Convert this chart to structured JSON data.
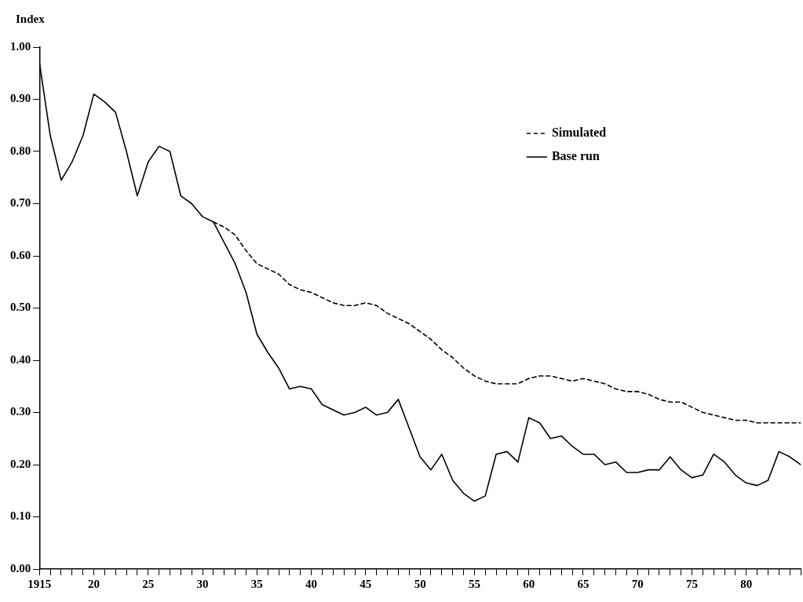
{
  "chart_data": {
    "type": "line",
    "ylabel": "Index",
    "legend": "top right",
    "grid": false,
    "marker": "none",
    "x": [
      1915,
      1916,
      1917,
      1918,
      1919,
      1920,
      1921,
      1922,
      1923,
      1924,
      1925,
      1926,
      1927,
      1928,
      1929,
      1930,
      1931,
      1932,
      1933,
      1934,
      1935,
      1936,
      1937,
      1938,
      1939,
      1940,
      1941,
      1942,
      1943,
      1944,
      1945,
      1946,
      1947,
      1948,
      1949,
      1950,
      1951,
      1952,
      1953,
      1954,
      1955,
      1956,
      1957,
      1958,
      1959,
      1960,
      1961,
      1962,
      1963,
      1964,
      1965,
      1966,
      1967,
      1968,
      1969,
      1970,
      1971,
      1972,
      1973,
      1974,
      1975,
      1976,
      1977,
      1978,
      1979,
      1980,
      1981,
      1982,
      1983,
      1984,
      1985
    ],
    "xlim": [
      1915,
      1985
    ],
    "xticks": [
      {
        "value": 1915,
        "label": "1915"
      },
      {
        "value": 1916,
        "label": null
      },
      {
        "value": 1917,
        "label": null
      },
      {
        "value": 1918,
        "label": null
      },
      {
        "value": 1919,
        "label": null
      },
      {
        "value": 1920,
        "label": "20"
      },
      {
        "value": 1921,
        "label": null
      },
      {
        "value": 1922,
        "label": null
      },
      {
        "value": 1923,
        "label": null
      },
      {
        "value": 1924,
        "label": null
      },
      {
        "value": 1925,
        "label": "25"
      },
      {
        "value": 1926,
        "label": null
      },
      {
        "value": 1927,
        "label": null
      },
      {
        "value": 1928,
        "label": null
      },
      {
        "value": 1929,
        "label": null
      },
      {
        "value": 1930,
        "label": "30"
      },
      {
        "value": 1931,
        "label": null
      },
      {
        "value": 1932,
        "label": null
      },
      {
        "value": 1933,
        "label": null
      },
      {
        "value": 1934,
        "label": null
      },
      {
        "value": 1935,
        "label": "35"
      },
      {
        "value": 1936,
        "label": null
      },
      {
        "value": 1937,
        "label": null
      },
      {
        "value": 1938,
        "label": null
      },
      {
        "value": 1939,
        "label": null
      },
      {
        "value": 1940,
        "label": "40"
      },
      {
        "value": 1941,
        "label": null
      },
      {
        "value": 1942,
        "label": null
      },
      {
        "value": 1943,
        "label": null
      },
      {
        "value": 1944,
        "label": null
      },
      {
        "value": 1945,
        "label": "45"
      },
      {
        "value": 1946,
        "label": null
      },
      {
        "value": 1947,
        "label": null
      },
      {
        "value": 1948,
        "label": null
      },
      {
        "value": 1949,
        "label": null
      },
      {
        "value": 1950,
        "label": "50"
      },
      {
        "value": 1951,
        "label": null
      },
      {
        "value": 1952,
        "label": null
      },
      {
        "value": 1953,
        "label": null
      },
      {
        "value": 1954,
        "label": null
      },
      {
        "value": 1955,
        "label": "55"
      },
      {
        "value": 1956,
        "label": null
      },
      {
        "value": 1957,
        "label": null
      },
      {
        "value": 1958,
        "label": null
      },
      {
        "value": 1959,
        "label": null
      },
      {
        "value": 1960,
        "label": "60"
      },
      {
        "value": 1961,
        "label": null
      },
      {
        "value": 1962,
        "label": null
      },
      {
        "value": 1963,
        "label": null
      },
      {
        "value": 1964,
        "label": null
      },
      {
        "value": 1965,
        "label": "65"
      },
      {
        "value": 1966,
        "label": null
      },
      {
        "value": 1967,
        "label": null
      },
      {
        "value": 1968,
        "label": null
      },
      {
        "value": 1969,
        "label": null
      },
      {
        "value": 1970,
        "label": "70"
      },
      {
        "value": 1971,
        "label": null
      },
      {
        "value": 1972,
        "label": null
      },
      {
        "value": 1973,
        "label": null
      },
      {
        "value": 1974,
        "label": null
      },
      {
        "value": 1975,
        "label": "75"
      },
      {
        "value": 1976,
        "label": null
      },
      {
        "value": 1977,
        "label": null
      },
      {
        "value": 1978,
        "label": null
      },
      {
        "value": 1979,
        "label": null
      },
      {
        "value": 1980,
        "label": "80"
      },
      {
        "value": 1981,
        "label": null
      },
      {
        "value": 1982,
        "label": null
      },
      {
        "value": 1983,
        "label": null
      },
      {
        "value": 1984,
        "label": null
      },
      {
        "value": 1985,
        "label": null
      }
    ],
    "ylim": [
      0,
      1
    ],
    "yticks": [
      {
        "value": 0,
        "label": "0.00"
      },
      {
        "value": 0.1,
        "label": "0.10"
      },
      {
        "value": 0.2,
        "label": "0.20"
      },
      {
        "value": 0.3,
        "label": "0.30"
      },
      {
        "value": 0.4,
        "label": "0.40"
      },
      {
        "value": 0.5,
        "label": "0.50"
      },
      {
        "value": 0.6,
        "label": "0.60"
      },
      {
        "value": 0.7,
        "label": "0.70"
      },
      {
        "value": 0.8,
        "label": "0.80"
      },
      {
        "value": 0.9,
        "label": "0.90"
      },
      {
        "value": 1,
        "label": "1.00"
      }
    ],
    "series": [
      {
        "name": "Simulated",
        "color": "#000000",
        "line_style": "dashed",
        "values": [
          null,
          null,
          null,
          null,
          null,
          null,
          null,
          null,
          null,
          null,
          null,
          null,
          null,
          null,
          null,
          null,
          0.665,
          0.655,
          0.64,
          0.61,
          0.585,
          0.575,
          0.565,
          0.545,
          0.535,
          0.53,
          0.52,
          0.51,
          0.505,
          0.505,
          0.51,
          0.505,
          0.49,
          0.48,
          0.47,
          0.455,
          0.44,
          0.42,
          0.405,
          0.385,
          0.37,
          0.36,
          0.355,
          0.355,
          0.355,
          0.365,
          0.37,
          0.37,
          0.365,
          0.36,
          0.365,
          0.36,
          0.355,
          0.345,
          0.34,
          0.34,
          0.335,
          0.325,
          0.32,
          0.32,
          0.31,
          0.3,
          0.295,
          0.29,
          0.285,
          0.285,
          0.28,
          0.28,
          0.28,
          0.28,
          0.28
        ]
      },
      {
        "name": "Base run",
        "color": "#000000",
        "line_style": "solid",
        "values": [
          0.97,
          0.83,
          0.745,
          0.78,
          0.83,
          0.91,
          0.895,
          0.875,
          0.8,
          0.715,
          0.78,
          0.81,
          0.8,
          0.715,
          0.7,
          0.675,
          0.665,
          0.625,
          0.585,
          0.53,
          0.45,
          0.415,
          0.385,
          0.345,
          0.35,
          0.345,
          0.315,
          0.305,
          0.295,
          0.3,
          0.31,
          0.295,
          0.3,
          0.325,
          0.27,
          0.215,
          0.19,
          0.22,
          0.17,
          0.145,
          0.13,
          0.14,
          0.22,
          0.225,
          0.205,
          0.29,
          0.28,
          0.25,
          0.255,
          0.235,
          0.22,
          0.22,
          0.2,
          0.205,
          0.185,
          0.185,
          0.19,
          0.19,
          0.215,
          0.19,
          0.175,
          0.18,
          0.22,
          0.205,
          0.18,
          0.165,
          0.16,
          0.17,
          0.225,
          0.215,
          0.2
        ]
      }
    ]
  }
}
